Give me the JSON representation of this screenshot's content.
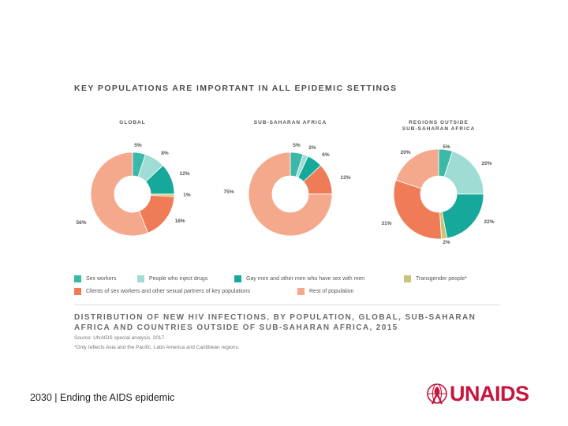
{
  "title": "KEY POPULATIONS ARE IMPORTANT IN ALL EPIDEMIC SETTINGS",
  "colors": {
    "sex_workers": "#3cb8a8",
    "pwid": "#9fdcd4",
    "msm": "#16a89a",
    "transgender": "#c8c47a",
    "clients": "#f07c57",
    "rest": "#f5a98c"
  },
  "legend": [
    {
      "label": "Sex workers",
      "color": "#3cb8a8"
    },
    {
      "label": "People who inject drugs",
      "color": "#9fdcd4"
    },
    {
      "label": "Gay men and other men who have sex with men",
      "color": "#16a89a"
    },
    {
      "label": "Transgender people*",
      "color": "#c8c47a"
    },
    {
      "label": "Clients of sex workers and other sexual partners of key populations",
      "color": "#f07c57"
    },
    {
      "label": "Rest of population",
      "color": "#f5a98c"
    }
  ],
  "chart_data": [
    {
      "type": "pie",
      "title": "GLOBAL",
      "categories": [
        "Sex workers",
        "People who inject drugs",
        "Gay men and other men who have sex with men",
        "Transgender people*",
        "Clients of sex workers and other sexual partners of key populations",
        "Rest of population"
      ],
      "values": [
        5,
        8,
        12,
        1,
        18,
        56
      ],
      "labels": [
        "5%",
        "8%",
        "12%",
        "1%",
        "18%",
        "56%"
      ]
    },
    {
      "type": "pie",
      "title": "SUB-SAHARAN AFRICA",
      "categories": [
        "Sex workers",
        "People who inject drugs",
        "Gay men and other men who have sex with men",
        "Transgender people*",
        "Clients of sex workers and other sexual partners of key populations",
        "Rest of population"
      ],
      "values": [
        5,
        2,
        6,
        0,
        12,
        75
      ],
      "labels": [
        "5%",
        "2%",
        "6%",
        "",
        "12%",
        "75%"
      ]
    },
    {
      "type": "pie",
      "title_lines": [
        "REGIONS OUTSIDE",
        "SUB-SAHARAN AFRICA"
      ],
      "categories": [
        "Sex workers",
        "People who inject drugs",
        "Gay men and other men who have sex with men",
        "Transgender people*",
        "Clients of sex workers and other sexual partners of key populations",
        "Rest of population"
      ],
      "values": [
        5,
        20,
        22,
        2,
        31,
        20
      ],
      "labels": [
        "5%",
        "20%",
        "22%",
        "2%",
        "31%",
        "20%"
      ]
    }
  ],
  "caption_lines": [
    "DISTRIBUTION OF NEW HIV INFECTIONS, BY POPULATION, GLOBAL, SUB-SAHARAN",
    "AFRICA AND COUNTRIES OUTSIDE OF SUB-SAHARAN AFRICA, 2015"
  ],
  "source": "Source: UNAIDS special analysis, 2017.",
  "footnote": "*Only reflects Asia and the Pacific, Latin America and Caribbean regions.",
  "footer": "2030 | Ending the AIDS epidemic",
  "logo": {
    "text": "UNAIDS",
    "icon": "red-ribbon-globe-icon"
  }
}
